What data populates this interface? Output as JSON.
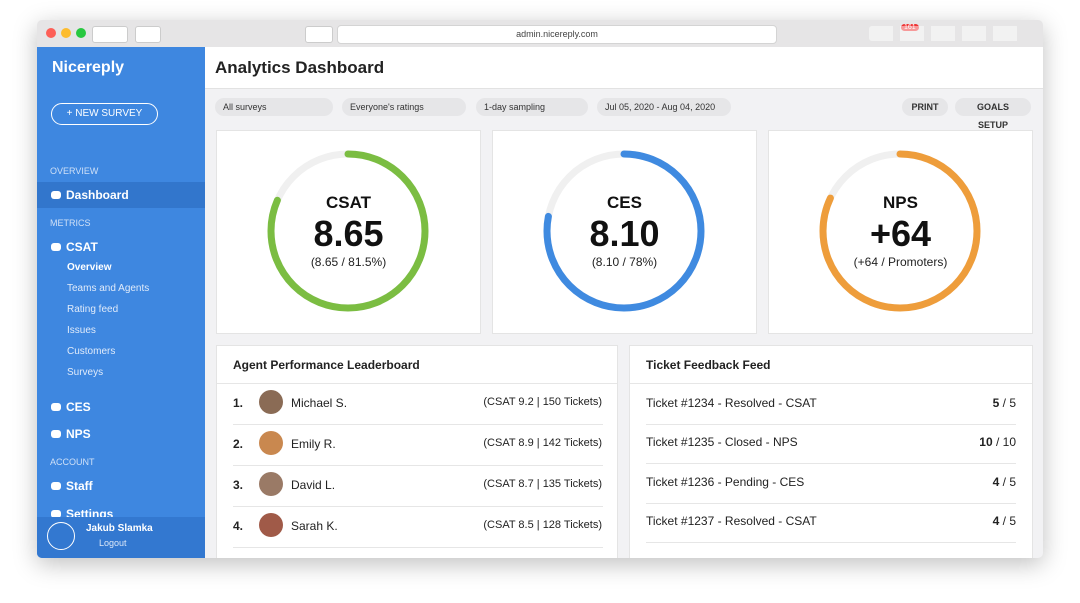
{
  "browser": {
    "url": "admin.nicereply.com",
    "badge": "161"
  },
  "sidebar": {
    "brand": "Nicereply",
    "new_survey": "+ NEW SURVEY",
    "sections": [
      {
        "label": "OVERVIEW",
        "items": [
          {
            "label": "Dashboard"
          }
        ]
      },
      {
        "label": "METRICS",
        "items": [
          {
            "label": "CSAT",
            "subitems": [
              "Overview",
              "Teams and Agents",
              "Rating feed",
              "Issues",
              "Customers",
              "Surveys"
            ]
          },
          {
            "label": "CES"
          },
          {
            "label": "NPS"
          }
        ]
      },
      {
        "label": "ACCOUNT",
        "items": [
          {
            "label": "Staff"
          },
          {
            "label": "Settings"
          }
        ]
      }
    ],
    "user": {
      "name": "Jakub Slamka",
      "action": "Logout"
    }
  },
  "header": {
    "title": "Analytics Dashboard"
  },
  "filters": [
    "All surveys",
    "Everyone's ratings",
    "1-day sampling",
    "Jul 05, 2020 - Aug 04, 2020"
  ],
  "buttons": [
    "PRINT",
    "GOALS SETUP"
  ],
  "scores": [
    {
      "label": "CSAT",
      "value": "8.65",
      "detail": "(8.65 / 81.5%)",
      "ring_percent": 81.5,
      "color": "#7bbd42"
    },
    {
      "label": "CES",
      "value": "8.10",
      "detail": "(8.10 / 78%)",
      "ring_percent": 78,
      "color": "#3f8ae0"
    },
    {
      "label": "NPS",
      "value": "+64",
      "detail": "(+64 / Promoters)",
      "ring_percent": 82,
      "color": "#ee9d3b"
    }
  ],
  "leaderboard": {
    "title": "Agent Performance Leaderboard",
    "rows": [
      {
        "rank": "1.",
        "name": "Michael S.",
        "stats": "(CSAT 9.2 | 150 Tickets)"
      },
      {
        "rank": "2.",
        "name": "Emily R.",
        "stats": "(CSAT 8.9 | 142 Tickets)"
      },
      {
        "rank": "3.",
        "name": "David L.",
        "stats": "(CSAT 8.7 | 135 Tickets)"
      },
      {
        "rank": "4.",
        "name": "Sarah K.",
        "stats": "(CSAT 8.5 | 128 Tickets)"
      }
    ]
  },
  "feed": {
    "title": "Ticket Feedback Feed",
    "rows": [
      {
        "text": "Ticket #1234 - Resolved - CSAT",
        "score": "5",
        "max": "/ 5"
      },
      {
        "text": "Ticket #1235 - Closed - NPS",
        "score": "10",
        "max": "/ 10"
      },
      {
        "text": "Ticket #1236 - Pending - CES",
        "score": "4",
        "max": "/ 5"
      },
      {
        "text": "Ticket #1237 - Resolved - CSAT",
        "score": "4",
        "max": "/ 5"
      }
    ]
  }
}
